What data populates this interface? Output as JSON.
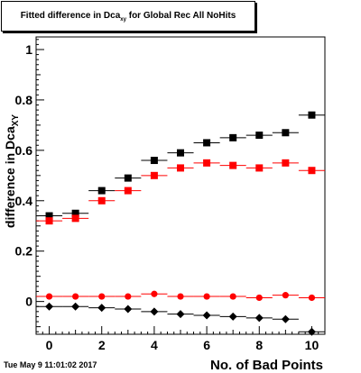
{
  "header": {
    "title_prefix": "Fitted difference in Dca",
    "title_sub": "xy",
    "title_suffix": " for Global Rec All NoHits"
  },
  "footer": {
    "timestamp": "Tue May  9 11:01:02 2017"
  },
  "chart_data": {
    "type": "scatter",
    "xlabel": "No. of Bad Points",
    "ylabel": "difference in Dca",
    "ylabel_sub": "XY",
    "xlim": [
      -0.5,
      10.5
    ],
    "ylim": [
      -0.13,
      1.05
    ],
    "x_ticks": [
      0,
      2,
      4,
      6,
      8,
      10
    ],
    "y_ticks": [
      0,
      0.2,
      0.4,
      0.6,
      0.8,
      1
    ],
    "y_tick_labels": [
      "0",
      "0.2",
      "0.4",
      "0.6",
      "0.8",
      "1"
    ],
    "grid": false,
    "series": [
      {
        "color": "#000000",
        "marker": "square",
        "x": [
          0,
          1,
          2,
          3,
          4,
          5,
          6,
          7,
          8,
          9,
          10
        ],
        "y": [
          0.34,
          0.35,
          0.44,
          0.49,
          0.56,
          0.59,
          0.63,
          0.65,
          0.66,
          0.67,
          0.74
        ]
      },
      {
        "color": "#ff0000",
        "marker": "square",
        "x": [
          0,
          1,
          2,
          3,
          4,
          5,
          6,
          7,
          8,
          9,
          10
        ],
        "y": [
          0.32,
          0.33,
          0.4,
          0.44,
          0.5,
          0.53,
          0.55,
          0.54,
          0.53,
          0.55,
          0.52
        ]
      },
      {
        "color": "#ff0000",
        "marker": "circle",
        "x": [
          0,
          1,
          2,
          3,
          4,
          5,
          6,
          7,
          8,
          9,
          10
        ],
        "y": [
          0.02,
          0.02,
          0.02,
          0.02,
          0.03,
          0.02,
          0.02,
          0.02,
          0.015,
          0.025,
          0.015
        ]
      },
      {
        "color": "#000000",
        "marker": "diamond",
        "x": [
          0,
          1,
          2,
          3,
          4,
          5,
          6,
          7,
          8,
          9,
          10
        ],
        "y": [
          -0.02,
          -0.02,
          -0.025,
          -0.03,
          -0.04,
          -0.05,
          -0.055,
          -0.06,
          -0.065,
          -0.07,
          -0.12
        ]
      }
    ]
  }
}
